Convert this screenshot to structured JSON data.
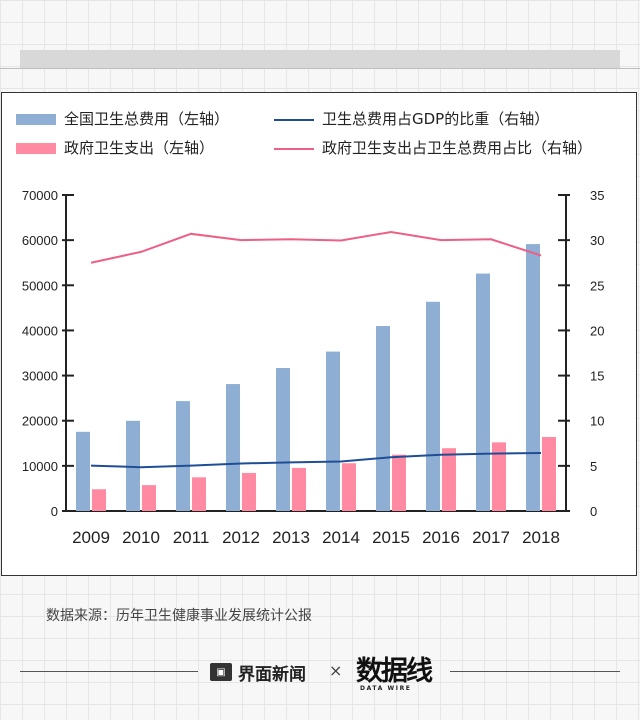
{
  "chart_data": {
    "type": "bar",
    "categories": [
      "2009",
      "2010",
      "2011",
      "2012",
      "2013",
      "2014",
      "2015",
      "2016",
      "2017",
      "2018"
    ],
    "left_axis": {
      "ticks": [
        "0",
        "10000",
        "20000",
        "30000",
        "40000",
        "50000",
        "60000",
        "70000"
      ],
      "ylim": [
        0,
        70000
      ]
    },
    "right_axis": {
      "ticks": [
        "0",
        "5",
        "10",
        "15",
        "20",
        "25",
        "30",
        "35"
      ],
      "ylim": [
        0,
        35
      ]
    },
    "series": [
      {
        "name": "全国卫生总费用（左轴）",
        "kind": "bar",
        "axis": "left",
        "color": "#8eaed4",
        "values": [
          17542,
          19980,
          24346,
          28119,
          31669,
          35312,
          40975,
          46345,
          52598,
          59122
        ]
      },
      {
        "name": "政府卫生支出（左轴）",
        "kind": "bar",
        "axis": "left",
        "color": "#ff8aa1",
        "values": [
          4816,
          5732,
          7464,
          8432,
          9546,
          10579,
          12475,
          13910,
          15206,
          16399
        ]
      },
      {
        "name": "卫生总费用占GDP的比重（右轴）",
        "kind": "line",
        "axis": "right",
        "color": "#1f4e96",
        "values": [
          5.03,
          4.85,
          5.03,
          5.26,
          5.39,
          5.48,
          5.95,
          6.23,
          6.36,
          6.43
        ]
      },
      {
        "name": "政府卫生支出占卫生总费用占比（右轴）",
        "kind": "line",
        "axis": "right",
        "color": "#ee5f86",
        "values": [
          27.5,
          28.7,
          30.7,
          30.0,
          30.1,
          29.96,
          30.9,
          30.0,
          30.1,
          28.3
        ]
      }
    ]
  },
  "legend": [
    {
      "label": "全国卫生总费用（左轴）",
      "color": "#8eaed4"
    },
    {
      "label": "卫生总费用占GDP的比重（右轴）",
      "color": "#1f4e96"
    },
    {
      "label": "政府卫生支出（左轴）",
      "color": "#ff8aa1"
    },
    {
      "label": "政府卫生支出占卫生总费用占比（右轴）",
      "color": "#ee5f86"
    }
  ],
  "source_text": "数据来源：历年卫生健康事业发展统计公报",
  "footer": {
    "brand_name": "界面新闻",
    "separator": "×",
    "partner_logo_text": "数据线",
    "partner_logo_sub": "DATA WIRE"
  }
}
